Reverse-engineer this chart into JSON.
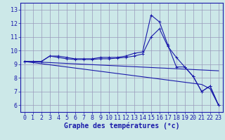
{
  "x": [
    0,
    1,
    2,
    3,
    4,
    5,
    6,
    7,
    8,
    9,
    10,
    11,
    12,
    13,
    14,
    15,
    16,
    17,
    18,
    19,
    20,
    21,
    22,
    23
  ],
  "line_main": [
    9.2,
    9.2,
    9.2,
    9.6,
    9.6,
    9.5,
    9.4,
    9.4,
    9.4,
    9.5,
    9.5,
    9.5,
    9.6,
    9.8,
    9.9,
    12.6,
    12.1,
    10.4,
    8.8,
    8.8,
    8.1,
    7.0,
    7.4,
    6.0
  ],
  "line2": [
    9.2,
    9.2,
    9.2,
    9.6,
    9.5,
    9.4,
    9.35,
    9.35,
    9.35,
    9.4,
    9.4,
    9.45,
    9.5,
    9.6,
    9.75,
    11.0,
    11.6,
    10.3,
    9.5,
    8.8,
    8.1,
    7.0,
    7.4,
    6.0
  ],
  "line3": [
    9.2,
    9.18,
    9.15,
    9.12,
    9.09,
    9.06,
    9.03,
    9.0,
    8.97,
    8.94,
    8.91,
    8.88,
    8.85,
    8.82,
    8.79,
    8.76,
    8.73,
    8.7,
    8.67,
    8.64,
    8.61,
    8.58,
    8.55,
    8.52
  ],
  "line4": [
    9.2,
    9.12,
    9.04,
    8.96,
    8.88,
    8.8,
    8.72,
    8.64,
    8.56,
    8.48,
    8.4,
    8.32,
    8.24,
    8.16,
    8.08,
    8.0,
    7.92,
    7.84,
    7.76,
    7.68,
    7.6,
    7.52,
    7.2,
    6.0
  ],
  "line_color": "#1a1aaa",
  "bg_color": "#cce8e8",
  "grid_color": "#9999bb",
  "xlabel": "Graphe des températures (°c)",
  "ylim": [
    5.5,
    13.5
  ],
  "xlim": [
    -0.5,
    23.5
  ],
  "yticks": [
    6,
    7,
    8,
    9,
    10,
    11,
    12,
    13
  ],
  "xticks": [
    0,
    1,
    2,
    3,
    4,
    5,
    6,
    7,
    8,
    9,
    10,
    11,
    12,
    13,
    14,
    15,
    16,
    17,
    18,
    19,
    20,
    21,
    22,
    23
  ],
  "xlabel_fontsize": 7,
  "tick_fontsize": 6
}
